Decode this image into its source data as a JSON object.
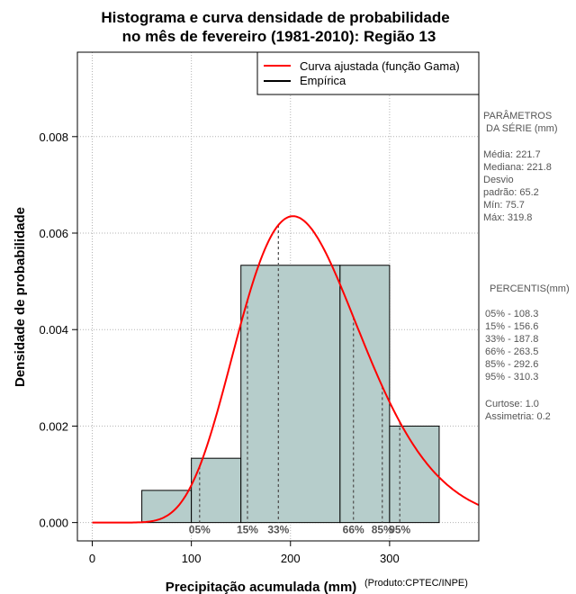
{
  "chart_data": {
    "type": "histogram",
    "title_line1": "Histograma e curva densidade de probabilidade",
    "title_line2": "no mês de fevereiro (1981-2010): Região 13",
    "xlabel": "Precipitação acumulada (mm)",
    "ylabel": "Densidade de probabilidade",
    "credit": "(Produto:CPTEC/INPE)",
    "xlim": [
      -15,
      390
    ],
    "ylim": [
      -0.00038,
      0.00975
    ],
    "x_ticks": [
      0,
      100,
      200,
      300
    ],
    "y_ticks": [
      0.0,
      0.002,
      0.004,
      0.006,
      0.008
    ],
    "y_tick_labels": [
      "0.000",
      "0.002",
      "0.004",
      "0.006",
      "0.008"
    ],
    "grid": true,
    "bins": [
      {
        "from": 50,
        "to": 100,
        "density": 0.000667
      },
      {
        "from": 100,
        "to": 150,
        "density": 0.001333
      },
      {
        "from": 150,
        "to": 250,
        "density": 0.005333
      },
      {
        "from": 250,
        "to": 300,
        "density": 0.005333
      },
      {
        "from": 300,
        "to": 350,
        "density": 0.002
      }
    ],
    "bar_color": "#b6cdcb",
    "curve_color": "#ff0000",
    "gamma_fit": {
      "mean": 221.7,
      "sd": 65.2
    },
    "percentile_lines": [
      {
        "label": "05%",
        "value": 108.3
      },
      {
        "label": "15%",
        "value": 156.6
      },
      {
        "label": "33%",
        "value": 187.8
      },
      {
        "label": "66%",
        "value": 263.5
      },
      {
        "label": "85%",
        "value": 292.6
      },
      {
        "label": "95%",
        "value": 310.3
      }
    ],
    "legend": [
      {
        "label": "Curva ajustada (função Gama)",
        "color": "#ff0000"
      },
      {
        "label": "Empírica",
        "color": "#000000"
      }
    ]
  },
  "side_panel": {
    "params_title_1": "PARÂMETROS",
    "params_title_2": " DA SÉRIE (mm)",
    "media": "Média:  221.7",
    "mediana": "Mediana:  221.8",
    "desvio_1": "Desvio",
    "desvio_2": "padrão:  65.2",
    "min": "Mín:  75.7",
    "max": "Máx:  319.8",
    "pct_title": "PERCENTIS(mm)",
    "p05": "05% -  108.3",
    "p15": "15% -  156.6",
    "p33": "33% -  187.8",
    "p66": "66% -  263.5",
    "p85": "85% -  292.6",
    "p95": "95% -  310.3",
    "curtose": "Curtose:  1.0",
    "assimetria": "Assimetria:  0.2"
  }
}
